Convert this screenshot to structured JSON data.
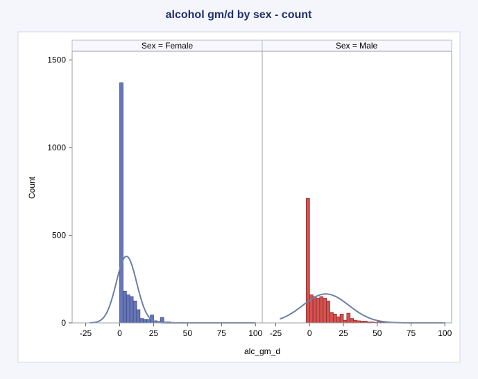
{
  "chart_data": {
    "type": "bar",
    "title": "alcohol gm/d by sex - count",
    "xlabel": "alc_gm_d",
    "ylabel": "Count",
    "xlim": [
      -35,
      105
    ],
    "ylim": [
      0,
      1550
    ],
    "xticks": [
      -25,
      0,
      25,
      50,
      75,
      100
    ],
    "yticks": [
      0,
      500,
      1000,
      1500
    ],
    "bin_width": 5,
    "colors": {
      "female": "#6676b6",
      "male": "#d45350",
      "curve": "#6c7fa6",
      "female_edge": "#3a4a8c",
      "male_edge": "#8e2a28"
    },
    "panels": [
      {
        "label": "Sex = Female",
        "bins": [
          {
            "x0": 0,
            "count": 1370
          },
          {
            "x0": 2.5,
            "count": 180
          },
          {
            "x0": 5,
            "count": 160
          },
          {
            "x0": 7.5,
            "count": 150
          },
          {
            "x0": 10,
            "count": 125
          },
          {
            "x0": 12.5,
            "count": 75
          },
          {
            "x0": 15,
            "count": 25
          },
          {
            "x0": 17.5,
            "count": 20
          },
          {
            "x0": 20,
            "count": 20
          },
          {
            "x0": 22.5,
            "count": 45
          },
          {
            "x0": 25,
            "count": 12
          },
          {
            "x0": 27.5,
            "count": 8
          },
          {
            "x0": 30,
            "count": 30
          },
          {
            "x0": 32.5,
            "count": 5
          },
          {
            "x0": 35,
            "count": 5
          },
          {
            "x0": 37.5,
            "count": 3
          },
          {
            "x0": 40,
            "count": 2
          },
          {
            "x0": 42.5,
            "count": 2
          },
          {
            "x0": 45,
            "count": 3
          },
          {
            "x0": 47.5,
            "count": 2
          },
          {
            "x0": 50,
            "count": 2
          },
          {
            "x0": 55,
            "count": 1
          },
          {
            "x0": 60,
            "count": 1
          },
          {
            "x0": 65,
            "count": 1
          }
        ],
        "curve": {
          "mean": 5,
          "sd": 7.5,
          "peak": 380
        }
      },
      {
        "label": "Sex = Male",
        "bins": [
          {
            "x0": -2.5,
            "count": 710
          },
          {
            "x0": 0,
            "count": 160
          },
          {
            "x0": 2.5,
            "count": 150
          },
          {
            "x0": 5,
            "count": 140
          },
          {
            "x0": 7.5,
            "count": 150
          },
          {
            "x0": 10,
            "count": 140
          },
          {
            "x0": 12.5,
            "count": 125
          },
          {
            "x0": 15,
            "count": 60
          },
          {
            "x0": 17.5,
            "count": 50
          },
          {
            "x0": 20,
            "count": 35
          },
          {
            "x0": 22.5,
            "count": 50
          },
          {
            "x0": 25,
            "count": 15
          },
          {
            "x0": 27.5,
            "count": 55
          },
          {
            "x0": 30,
            "count": 25
          },
          {
            "x0": 32.5,
            "count": 15
          },
          {
            "x0": 35,
            "count": 12
          },
          {
            "x0": 37.5,
            "count": 10
          },
          {
            "x0": 40,
            "count": 10
          },
          {
            "x0": 42.5,
            "count": 5
          },
          {
            "x0": 45,
            "count": 5
          },
          {
            "x0": 47.5,
            "count": 2
          },
          {
            "x0": 50,
            "count": 10
          },
          {
            "x0": 52.5,
            "count": 5
          },
          {
            "x0": 55,
            "count": 2
          },
          {
            "x0": 60,
            "count": 2
          },
          {
            "x0": 65,
            "count": 2
          }
        ],
        "curve": {
          "mean": 12,
          "sd": 17,
          "peak": 165
        }
      }
    ]
  }
}
